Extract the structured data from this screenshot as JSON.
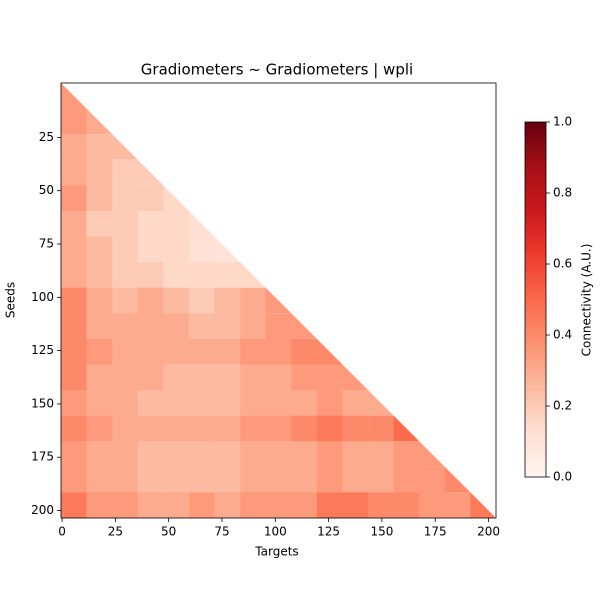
{
  "chart_data": {
    "type": "heatmap",
    "title": "Gradiometers ~ Gradiometers | wpli",
    "x_label": "Targets",
    "y_label": "Seeds",
    "colorbar_label": "Connectivity (A.U.)",
    "xbins": [
      -0.5,
      11.5,
      23.5,
      35.5,
      47.5,
      59.5,
      71.5,
      83.5,
      95.5,
      107.5,
      119.5,
      131.5,
      143.5,
      155.5,
      167.5,
      179.5,
      191.5,
      203.5
    ],
    "ybins": [
      -0.5,
      11.5,
      23.5,
      35.5,
      47.5,
      59.5,
      71.5,
      83.5,
      95.5,
      107.5,
      119.5,
      131.5,
      143.5,
      155.5,
      167.5,
      179.5,
      191.5,
      203.5
    ],
    "values": [
      [
        0.35,
        null,
        null,
        null,
        null,
        null,
        null,
        null,
        null,
        null,
        null,
        null,
        null,
        null,
        null,
        null,
        null
      ],
      [
        0.35,
        0.3,
        null,
        null,
        null,
        null,
        null,
        null,
        null,
        null,
        null,
        null,
        null,
        null,
        null,
        null,
        null
      ],
      [
        0.3,
        0.25,
        0.25,
        null,
        null,
        null,
        null,
        null,
        null,
        null,
        null,
        null,
        null,
        null,
        null,
        null,
        null
      ],
      [
        0.3,
        0.25,
        0.2,
        0.2,
        null,
        null,
        null,
        null,
        null,
        null,
        null,
        null,
        null,
        null,
        null,
        null,
        null
      ],
      [
        0.35,
        0.25,
        0.2,
        0.2,
        0.15,
        null,
        null,
        null,
        null,
        null,
        null,
        null,
        null,
        null,
        null,
        null,
        null
      ],
      [
        0.3,
        0.2,
        0.2,
        0.15,
        0.15,
        0.12,
        null,
        null,
        null,
        null,
        null,
        null,
        null,
        null,
        null,
        null,
        null
      ],
      [
        0.3,
        0.25,
        0.2,
        0.15,
        0.15,
        0.12,
        0.1,
        null,
        null,
        null,
        null,
        null,
        null,
        null,
        null,
        null,
        null
      ],
      [
        0.3,
        0.25,
        0.2,
        0.2,
        0.15,
        0.15,
        0.15,
        0.15,
        null,
        null,
        null,
        null,
        null,
        null,
        null,
        null,
        null
      ],
      [
        0.4,
        0.3,
        0.25,
        0.3,
        0.25,
        0.2,
        0.25,
        0.3,
        0.35,
        null,
        null,
        null,
        null,
        null,
        null,
        null,
        null
      ],
      [
        0.4,
        0.3,
        0.3,
        0.3,
        0.3,
        0.25,
        0.25,
        0.3,
        0.35,
        0.35,
        null,
        null,
        null,
        null,
        null,
        null,
        null
      ],
      [
        0.4,
        0.35,
        0.3,
        0.3,
        0.3,
        0.3,
        0.3,
        0.35,
        0.35,
        0.4,
        0.4,
        null,
        null,
        null,
        null,
        null,
        null
      ],
      [
        0.4,
        0.3,
        0.3,
        0.3,
        0.25,
        0.25,
        0.25,
        0.3,
        0.3,
        0.35,
        0.35,
        0.35,
        null,
        null,
        null,
        null,
        null
      ],
      [
        0.35,
        0.3,
        0.3,
        0.25,
        0.25,
        0.25,
        0.25,
        0.3,
        0.3,
        0.3,
        0.35,
        0.3,
        0.3,
        null,
        null,
        null,
        null
      ],
      [
        0.4,
        0.35,
        0.3,
        0.3,
        0.3,
        0.3,
        0.3,
        0.35,
        0.35,
        0.4,
        0.45,
        0.4,
        0.4,
        0.5,
        null,
        null,
        null
      ],
      [
        0.35,
        0.3,
        0.3,
        0.25,
        0.25,
        0.25,
        0.25,
        0.3,
        0.3,
        0.3,
        0.35,
        0.3,
        0.3,
        0.35,
        0.35,
        null,
        null
      ],
      [
        0.35,
        0.3,
        0.3,
        0.25,
        0.25,
        0.25,
        0.25,
        0.3,
        0.3,
        0.3,
        0.35,
        0.3,
        0.3,
        0.35,
        0.35,
        0.4,
        null
      ],
      [
        0.45,
        0.35,
        0.35,
        0.3,
        0.3,
        0.35,
        0.3,
        0.35,
        0.35,
        0.35,
        0.45,
        0.45,
        0.4,
        0.4,
        0.35,
        0.35,
        0.45
      ]
    ],
    "colormap": [
      "#fff5f0",
      "#fee0d2",
      "#fcbba1",
      "#fc9272",
      "#fb6a4a",
      "#ef3b2c",
      "#cb181d",
      "#a50f15",
      "#67000d"
    ],
    "xlim": [
      -0.5,
      203.5
    ],
    "ylim": [
      203.5,
      -0.5
    ],
    "clim": [
      0,
      1
    ],
    "xticks": [
      0,
      25,
      50,
      75,
      100,
      125,
      150,
      175,
      200
    ],
    "yticks": [
      25,
      50,
      75,
      100,
      125,
      150,
      175,
      200
    ],
    "cticks": [
      {
        "value": 0,
        "label": "0.0"
      },
      0.2,
      0.4,
      0.6,
      0.8,
      {
        "value": 1,
        "label": "1.0"
      }
    ]
  }
}
